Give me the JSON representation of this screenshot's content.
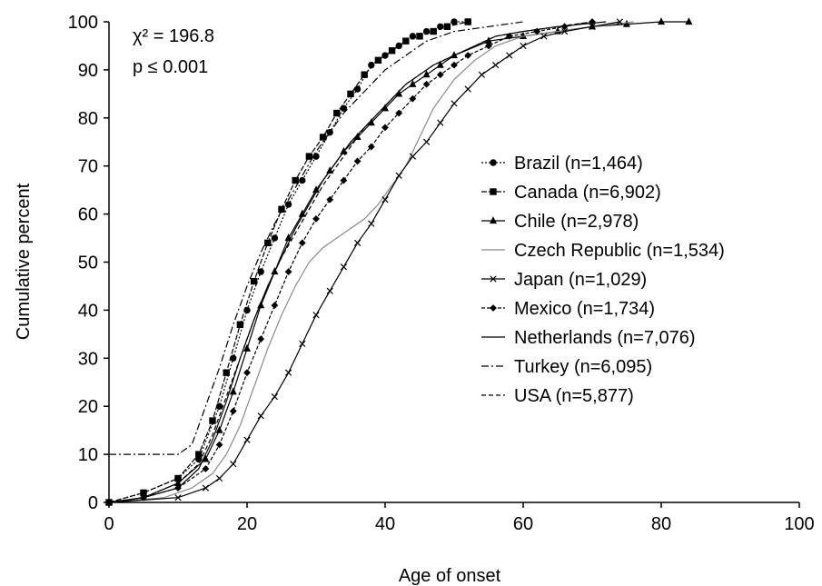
{
  "chart_data": {
    "type": "line",
    "title": "",
    "xlabel": "Age of onset",
    "ylabel": "Cumulative percent",
    "xlim": [
      0,
      100
    ],
    "ylim": [
      0,
      100
    ],
    "x_ticks": [
      0,
      20,
      40,
      60,
      80,
      100
    ],
    "y_ticks": [
      0,
      10,
      20,
      30,
      40,
      50,
      60,
      70,
      80,
      90,
      100
    ],
    "grid": false,
    "legend_position": "right",
    "annotations": {
      "line1": "χ² = 196.8",
      "line2": "p ≤ 0.001"
    },
    "series": [
      {
        "name": "Brazil (n=1,464)",
        "marker": "circle",
        "dash": "2 2",
        "color": "#000000",
        "points": [
          [
            0,
            0
          ],
          [
            5,
            2
          ],
          [
            10,
            5
          ],
          [
            13,
            9
          ],
          [
            16,
            20
          ],
          [
            18,
            30
          ],
          [
            20,
            40
          ],
          [
            22,
            48
          ],
          [
            24,
            55
          ],
          [
            26,
            62
          ],
          [
            28,
            67
          ],
          [
            30,
            72
          ],
          [
            32,
            77
          ],
          [
            34,
            82
          ],
          [
            36,
            86
          ],
          [
            38,
            91
          ],
          [
            40,
            93
          ],
          [
            42,
            95
          ],
          [
            44,
            97
          ],
          [
            46,
            98
          ],
          [
            48,
            99
          ],
          [
            50,
            100
          ],
          [
            52,
            100
          ]
        ]
      },
      {
        "name": "Canada (n=6,902)",
        "marker": "square",
        "dash": "6 2",
        "color": "#000000",
        "points": [
          [
            0,
            0
          ],
          [
            5,
            2
          ],
          [
            10,
            5
          ],
          [
            13,
            10
          ],
          [
            15,
            17
          ],
          [
            17,
            27
          ],
          [
            19,
            37
          ],
          [
            21,
            46
          ],
          [
            23,
            54
          ],
          [
            25,
            61
          ],
          [
            27,
            67
          ],
          [
            29,
            72
          ],
          [
            31,
            76
          ],
          [
            33,
            81
          ],
          [
            35,
            85
          ],
          [
            37,
            89
          ],
          [
            39,
            92
          ],
          [
            41,
            94
          ],
          [
            43,
            96
          ],
          [
            45,
            97
          ],
          [
            47,
            98
          ],
          [
            49,
            99
          ],
          [
            52,
            100
          ]
        ]
      },
      {
        "name": "Chile (n=2,978)",
        "marker": "triangle",
        "dash": "",
        "color": "#000000",
        "points": [
          [
            0,
            0
          ],
          [
            5,
            1
          ],
          [
            10,
            4
          ],
          [
            14,
            9
          ],
          [
            16,
            15
          ],
          [
            18,
            23
          ],
          [
            20,
            32
          ],
          [
            22,
            41
          ],
          [
            24,
            48
          ],
          [
            26,
            55
          ],
          [
            28,
            60
          ],
          [
            30,
            65
          ],
          [
            32,
            69
          ],
          [
            34,
            73
          ],
          [
            36,
            76
          ],
          [
            38,
            79
          ],
          [
            40,
            82
          ],
          [
            42,
            85
          ],
          [
            44,
            87
          ],
          [
            46,
            89
          ],
          [
            48,
            91
          ],
          [
            50,
            93
          ],
          [
            55,
            96
          ],
          [
            60,
            97
          ],
          [
            65,
            98
          ],
          [
            70,
            99
          ],
          [
            75,
            99.5
          ],
          [
            80,
            100
          ],
          [
            84,
            100
          ]
        ]
      },
      {
        "name": "Czech Republic (n=1,534)",
        "marker": "none",
        "dash": "",
        "color": "#8a8a8a",
        "points": [
          [
            0,
            0
          ],
          [
            8,
            1
          ],
          [
            12,
            3
          ],
          [
            15,
            6
          ],
          [
            17,
            10
          ],
          [
            19,
            16
          ],
          [
            21,
            24
          ],
          [
            23,
            32
          ],
          [
            25,
            39
          ],
          [
            27,
            45
          ],
          [
            29,
            50
          ],
          [
            31,
            53
          ],
          [
            33,
            55
          ],
          [
            35,
            57
          ],
          [
            37,
            59
          ],
          [
            39,
            62
          ],
          [
            41,
            66
          ],
          [
            43,
            70
          ],
          [
            45,
            76
          ],
          [
            47,
            82
          ],
          [
            50,
            88
          ],
          [
            53,
            92
          ],
          [
            56,
            95
          ],
          [
            60,
            97
          ],
          [
            65,
            98
          ],
          [
            70,
            99
          ],
          [
            76,
            100
          ]
        ]
      },
      {
        "name": "Japan (n=1,029)",
        "marker": "cross",
        "dash": "",
        "color": "#000000",
        "points": [
          [
            0,
            0
          ],
          [
            10,
            1
          ],
          [
            14,
            3
          ],
          [
            16,
            5
          ],
          [
            18,
            8
          ],
          [
            20,
            13
          ],
          [
            22,
            18
          ],
          [
            24,
            22
          ],
          [
            26,
            27
          ],
          [
            28,
            33
          ],
          [
            30,
            39
          ],
          [
            32,
            44
          ],
          [
            34,
            49
          ],
          [
            36,
            54
          ],
          [
            38,
            58
          ],
          [
            40,
            63
          ],
          [
            42,
            68
          ],
          [
            44,
            72
          ],
          [
            46,
            75
          ],
          [
            48,
            79
          ],
          [
            50,
            83
          ],
          [
            52,
            86
          ],
          [
            54,
            89
          ],
          [
            56,
            91
          ],
          [
            58,
            93
          ],
          [
            60,
            95
          ],
          [
            63,
            97
          ],
          [
            66,
            98
          ],
          [
            70,
            99
          ],
          [
            74,
            100
          ]
        ]
      },
      {
        "name": "Mexico (n=1,734)",
        "marker": "diamond",
        "dash": "4 2",
        "color": "#000000",
        "points": [
          [
            0,
            0
          ],
          [
            5,
            1
          ],
          [
            10,
            3
          ],
          [
            14,
            7
          ],
          [
            16,
            12
          ],
          [
            18,
            19
          ],
          [
            20,
            27
          ],
          [
            22,
            34
          ],
          [
            24,
            41
          ],
          [
            26,
            48
          ],
          [
            28,
            54
          ],
          [
            30,
            59
          ],
          [
            32,
            63
          ],
          [
            34,
            67
          ],
          [
            36,
            71
          ],
          [
            38,
            74
          ],
          [
            40,
            78
          ],
          [
            42,
            81
          ],
          [
            44,
            84
          ],
          [
            46,
            87
          ],
          [
            48,
            89
          ],
          [
            50,
            91
          ],
          [
            52,
            93
          ],
          [
            55,
            95
          ],
          [
            58,
            97
          ],
          [
            62,
            98
          ],
          [
            66,
            99
          ],
          [
            70,
            100
          ]
        ]
      },
      {
        "name": "Netherlands (n=7,076)",
        "marker": "none",
        "dash": "",
        "color": "#000000",
        "points": [
          [
            0,
            0
          ],
          [
            5,
            1
          ],
          [
            10,
            3
          ],
          [
            13,
            7
          ],
          [
            15,
            13
          ],
          [
            17,
            21
          ],
          [
            19,
            30
          ],
          [
            21,
            38
          ],
          [
            23,
            45
          ],
          [
            25,
            51
          ],
          [
            27,
            57
          ],
          [
            29,
            62
          ],
          [
            31,
            67
          ],
          [
            33,
            71
          ],
          [
            35,
            75
          ],
          [
            37,
            78
          ],
          [
            39,
            81
          ],
          [
            41,
            84
          ],
          [
            43,
            87
          ],
          [
            45,
            89
          ],
          [
            47,
            91
          ],
          [
            50,
            93
          ],
          [
            53,
            95
          ],
          [
            56,
            97
          ],
          [
            60,
            98
          ],
          [
            65,
            99
          ],
          [
            72,
            100
          ]
        ]
      },
      {
        "name": "Turkey (n=6,095)",
        "marker": "none",
        "dash": "8 3 2 3",
        "color": "#000000",
        "points": [
          [
            0,
            10
          ],
          [
            10,
            10
          ],
          [
            12,
            12
          ],
          [
            14,
            20
          ],
          [
            16,
            28
          ],
          [
            18,
            37
          ],
          [
            20,
            45
          ],
          [
            22,
            52
          ],
          [
            24,
            58
          ],
          [
            26,
            63
          ],
          [
            28,
            68
          ],
          [
            30,
            73
          ],
          [
            32,
            77
          ],
          [
            34,
            81
          ],
          [
            36,
            84
          ],
          [
            38,
            87
          ],
          [
            40,
            90
          ],
          [
            42,
            92
          ],
          [
            44,
            94
          ],
          [
            46,
            96
          ],
          [
            48,
            97
          ],
          [
            50,
            98
          ],
          [
            55,
            99
          ],
          [
            60,
            100
          ]
        ]
      },
      {
        "name": "USA (n=5,877)",
        "marker": "none",
        "dash": "5 3",
        "color": "#000000",
        "points": [
          [
            0,
            0
          ],
          [
            5,
            1
          ],
          [
            10,
            4
          ],
          [
            13,
            8
          ],
          [
            15,
            14
          ],
          [
            17,
            22
          ],
          [
            19,
            30
          ],
          [
            21,
            38
          ],
          [
            23,
            45
          ],
          [
            25,
            51
          ],
          [
            27,
            56
          ],
          [
            29,
            61
          ],
          [
            31,
            66
          ],
          [
            33,
            70
          ],
          [
            35,
            74
          ],
          [
            37,
            78
          ],
          [
            39,
            81
          ],
          [
            41,
            84
          ],
          [
            43,
            87
          ],
          [
            45,
            89
          ],
          [
            47,
            91
          ],
          [
            50,
            93
          ],
          [
            53,
            95
          ],
          [
            56,
            97
          ],
          [
            60,
            98
          ],
          [
            65,
            99
          ],
          [
            70,
            100
          ]
        ]
      }
    ]
  }
}
